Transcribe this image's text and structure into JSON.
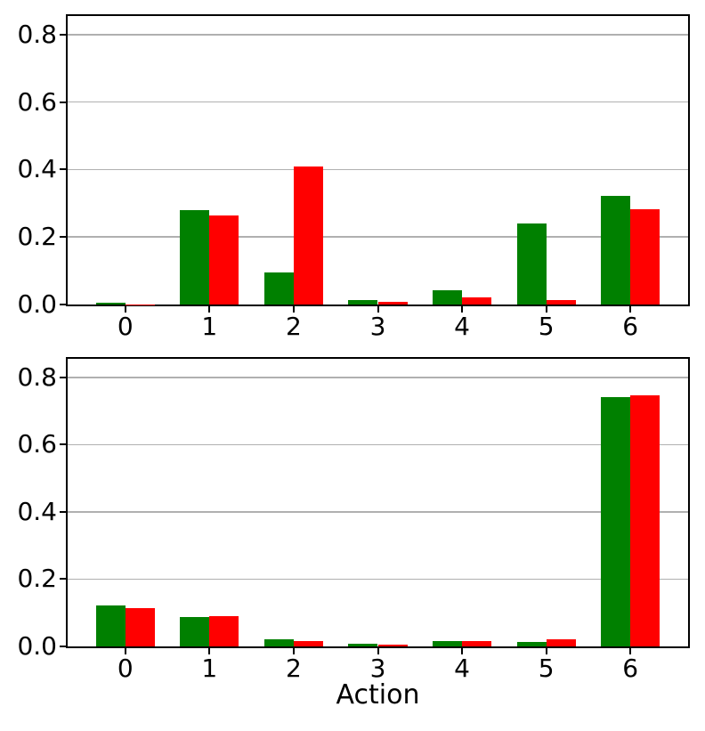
{
  "figure": {
    "background": "#ffffff",
    "grid_color": "#b0b0b0",
    "spine_color": "#000000",
    "bar_width": 0.35,
    "xlim": [
      -0.685,
      6.685
    ],
    "y_tick_values": [
      0.0,
      0.2,
      0.4,
      0.6,
      0.8
    ],
    "y_tick_labels": [
      "0.0",
      "0.2",
      "0.4",
      "0.6",
      "0.8"
    ],
    "x_tick_labels": [
      "0",
      "1",
      "2",
      "3",
      "4",
      "5",
      "6"
    ]
  },
  "chart_data": [
    {
      "type": "bar",
      "title": "",
      "xlabel": "",
      "ylabel": "",
      "grid": true,
      "legend": null,
      "categories": [
        0,
        1,
        2,
        3,
        4,
        5,
        6
      ],
      "ylim": [
        0,
        0.855
      ],
      "series": [
        {
          "name": "green",
          "color": "#008000",
          "offset": -0.175,
          "values": [
            0.005,
            0.28,
            0.095,
            0.013,
            0.043,
            0.24,
            0.322
          ]
        },
        {
          "name": "red",
          "color": "#ff0000",
          "offset": 0.175,
          "values": [
            0.001,
            0.263,
            0.409,
            0.009,
            0.021,
            0.013,
            0.283
          ]
        }
      ]
    },
    {
      "type": "bar",
      "title": "",
      "xlabel": "Action",
      "ylabel": "",
      "grid": true,
      "legend": null,
      "categories": [
        0,
        1,
        2,
        3,
        4,
        5,
        6
      ],
      "ylim": [
        0,
        0.855
      ],
      "series": [
        {
          "name": "green",
          "color": "#008000",
          "offset": -0.175,
          "values": [
            0.123,
            0.088,
            0.021,
            0.009,
            0.016,
            0.012,
            0.742
          ]
        },
        {
          "name": "red",
          "color": "#ff0000",
          "offset": 0.175,
          "values": [
            0.114,
            0.091,
            0.016,
            0.006,
            0.015,
            0.02,
            0.747
          ]
        }
      ]
    }
  ]
}
